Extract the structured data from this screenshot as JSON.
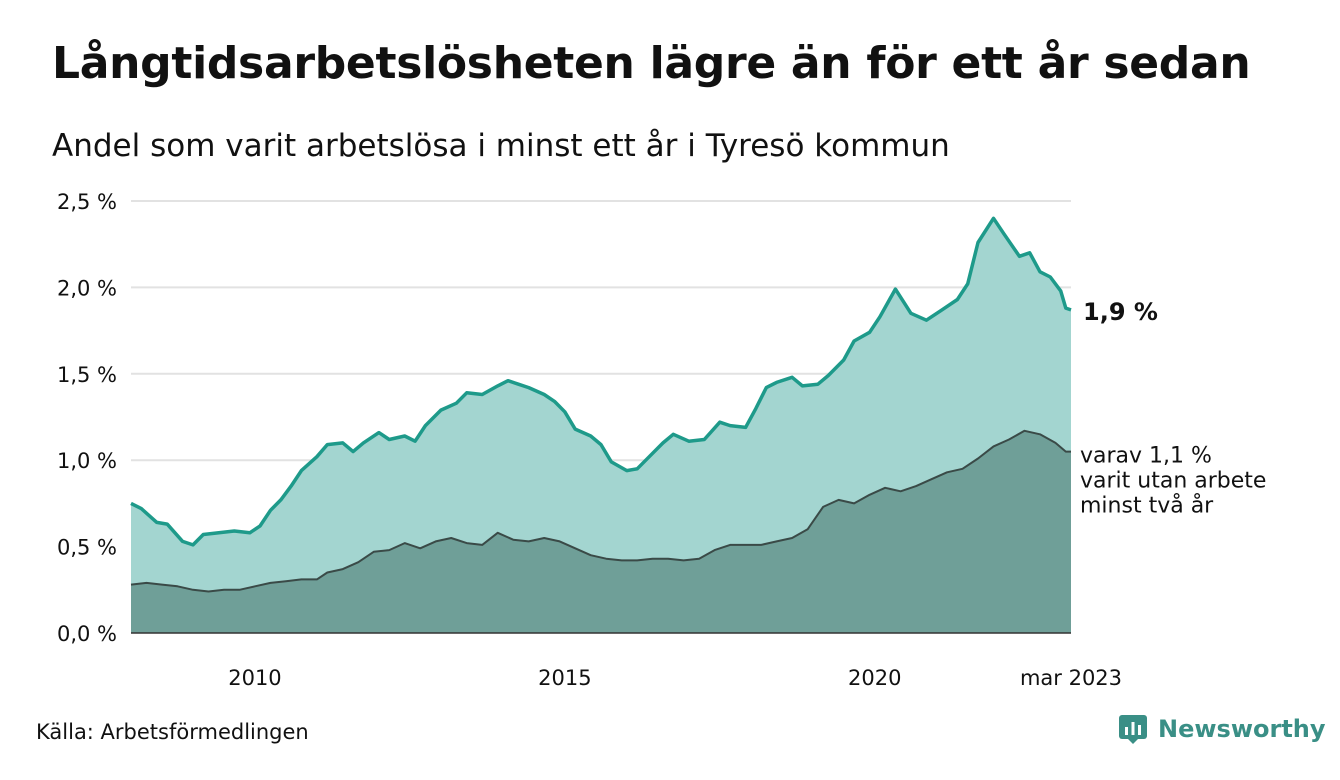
{
  "header": {
    "title": "Långtidsarbetslösheten lägre än för ett år sedan",
    "subtitle": "Andel som varit arbetslösa i minst ett år i Tyresö kommun"
  },
  "footer": {
    "source": "Källa: Arbetsförmedlingen",
    "brand": "Newsworthy"
  },
  "colors": {
    "total_line": "#1e9a8a",
    "total_fill": "#a3d5d0",
    "long_line": "#3a4a47",
    "long_fill": "#6f9f98",
    "grid": "#e2e2e2",
    "brand": "#3a8f86"
  },
  "chart_data": {
    "type": "area",
    "title": "Långtidsarbetslösheten lägre än för ett år sedan",
    "subtitle": "Andel som varit arbetslösa i minst ett år i Tyresö kommun",
    "xlabel": "",
    "ylabel": "",
    "ylim": [
      0,
      2.5
    ],
    "xlim": [
      "2008-01",
      "2023-03"
    ],
    "grid": true,
    "legend": "none",
    "y_ticks": [
      {
        "value": 0.0,
        "label": "0,0 %"
      },
      {
        "value": 0.5,
        "label": "0,5 %"
      },
      {
        "value": 1.0,
        "label": "1,0 %"
      },
      {
        "value": 1.5,
        "label": "1,5 %"
      },
      {
        "value": 2.0,
        "label": "2,0 %"
      },
      {
        "value": 2.5,
        "label": "2,5 %"
      }
    ],
    "x_ticks": [
      {
        "value": "2010-01",
        "label": "2010"
      },
      {
        "value": "2015-01",
        "label": "2015"
      },
      {
        "value": "2020-01",
        "label": "2020"
      },
      {
        "value": "2023-03",
        "label": "mar 2023"
      }
    ],
    "end_labels": {
      "total": "1,9 %",
      "long": [
        "varav 1,1 %",
        "varit utan arbete",
        "minst två år"
      ]
    },
    "series": [
      {
        "key": "total",
        "points": [
          [
            "2008-01",
            0.75
          ],
          [
            "2008-03",
            0.72
          ],
          [
            "2008-06",
            0.64
          ],
          [
            "2008-08",
            0.63
          ],
          [
            "2008-11",
            0.53
          ],
          [
            "2009-01",
            0.51
          ],
          [
            "2009-03",
            0.57
          ],
          [
            "2009-06",
            0.58
          ],
          [
            "2009-09",
            0.59
          ],
          [
            "2009-12",
            0.58
          ],
          [
            "2010-02",
            0.62
          ],
          [
            "2010-04",
            0.71
          ],
          [
            "2010-06",
            0.77
          ],
          [
            "2010-08",
            0.85
          ],
          [
            "2010-10",
            0.94
          ],
          [
            "2011-01",
            1.02
          ],
          [
            "2011-03",
            1.09
          ],
          [
            "2011-06",
            1.1
          ],
          [
            "2011-08",
            1.05
          ],
          [
            "2011-10",
            1.1
          ],
          [
            "2012-01",
            1.16
          ],
          [
            "2012-03",
            1.12
          ],
          [
            "2012-06",
            1.14
          ],
          [
            "2012-08",
            1.11
          ],
          [
            "2012-10",
            1.2
          ],
          [
            "2013-01",
            1.29
          ],
          [
            "2013-04",
            1.33
          ],
          [
            "2013-06",
            1.39
          ],
          [
            "2013-09",
            1.38
          ],
          [
            "2013-12",
            1.43
          ],
          [
            "2014-02",
            1.46
          ],
          [
            "2014-04",
            1.44
          ],
          [
            "2014-06",
            1.42
          ],
          [
            "2014-09",
            1.38
          ],
          [
            "2014-11",
            1.34
          ],
          [
            "2015-01",
            1.28
          ],
          [
            "2015-03",
            1.18
          ],
          [
            "2015-06",
            1.14
          ],
          [
            "2015-08",
            1.09
          ],
          [
            "2015-10",
            0.99
          ],
          [
            "2016-01",
            0.94
          ],
          [
            "2016-03",
            0.95
          ],
          [
            "2016-06",
            1.04
          ],
          [
            "2016-08",
            1.1
          ],
          [
            "2016-10",
            1.15
          ],
          [
            "2017-01",
            1.11
          ],
          [
            "2017-04",
            1.12
          ],
          [
            "2017-07",
            1.22
          ],
          [
            "2017-09",
            1.2
          ],
          [
            "2017-12",
            1.19
          ],
          [
            "2018-02",
            1.3
          ],
          [
            "2018-04",
            1.42
          ],
          [
            "2018-06",
            1.45
          ],
          [
            "2018-09",
            1.48
          ],
          [
            "2018-11",
            1.43
          ],
          [
            "2019-02",
            1.44
          ],
          [
            "2019-04",
            1.49
          ],
          [
            "2019-07",
            1.58
          ],
          [
            "2019-09",
            1.69
          ],
          [
            "2019-12",
            1.74
          ],
          [
            "2020-02",
            1.83
          ],
          [
            "2020-05",
            1.99
          ],
          [
            "2020-08",
            1.85
          ],
          [
            "2020-11",
            1.81
          ],
          [
            "2021-02",
            1.87
          ],
          [
            "2021-05",
            1.93
          ],
          [
            "2021-07",
            2.02
          ],
          [
            "2021-09",
            2.26
          ],
          [
            "2021-12",
            2.4
          ],
          [
            "2022-02",
            2.31
          ],
          [
            "2022-05",
            2.18
          ],
          [
            "2022-07",
            2.2
          ],
          [
            "2022-09",
            2.09
          ],
          [
            "2022-11",
            2.06
          ],
          [
            "2023-01",
            1.98
          ],
          [
            "2023-02",
            1.88
          ],
          [
            "2023-03",
            1.87
          ]
        ]
      },
      {
        "key": "long",
        "points": [
          [
            "2008-01",
            0.28
          ],
          [
            "2008-04",
            0.29
          ],
          [
            "2008-07",
            0.28
          ],
          [
            "2008-10",
            0.27
          ],
          [
            "2009-01",
            0.25
          ],
          [
            "2009-04",
            0.24
          ],
          [
            "2009-07",
            0.25
          ],
          [
            "2009-10",
            0.25
          ],
          [
            "2010-01",
            0.27
          ],
          [
            "2010-04",
            0.29
          ],
          [
            "2010-07",
            0.3
          ],
          [
            "2010-10",
            0.31
          ],
          [
            "2011-01",
            0.31
          ],
          [
            "2011-03",
            0.35
          ],
          [
            "2011-06",
            0.37
          ],
          [
            "2011-09",
            0.41
          ],
          [
            "2011-12",
            0.47
          ],
          [
            "2012-03",
            0.48
          ],
          [
            "2012-06",
            0.52
          ],
          [
            "2012-09",
            0.49
          ],
          [
            "2012-12",
            0.53
          ],
          [
            "2013-03",
            0.55
          ],
          [
            "2013-06",
            0.52
          ],
          [
            "2013-09",
            0.51
          ],
          [
            "2013-12",
            0.58
          ],
          [
            "2014-03",
            0.54
          ],
          [
            "2014-06",
            0.53
          ],
          [
            "2014-09",
            0.55
          ],
          [
            "2014-12",
            0.53
          ],
          [
            "2015-03",
            0.49
          ],
          [
            "2015-06",
            0.45
          ],
          [
            "2015-09",
            0.43
          ],
          [
            "2015-12",
            0.42
          ],
          [
            "2016-03",
            0.42
          ],
          [
            "2016-06",
            0.43
          ],
          [
            "2016-09",
            0.43
          ],
          [
            "2016-12",
            0.42
          ],
          [
            "2017-03",
            0.43
          ],
          [
            "2017-06",
            0.48
          ],
          [
            "2017-09",
            0.51
          ],
          [
            "2017-12",
            0.51
          ],
          [
            "2018-03",
            0.51
          ],
          [
            "2018-06",
            0.53
          ],
          [
            "2018-09",
            0.55
          ],
          [
            "2018-12",
            0.6
          ],
          [
            "2019-03",
            0.73
          ],
          [
            "2019-06",
            0.77
          ],
          [
            "2019-09",
            0.75
          ],
          [
            "2019-12",
            0.8
          ],
          [
            "2020-03",
            0.84
          ],
          [
            "2020-06",
            0.82
          ],
          [
            "2020-09",
            0.85
          ],
          [
            "2020-12",
            0.89
          ],
          [
            "2021-03",
            0.93
          ],
          [
            "2021-06",
            0.95
          ],
          [
            "2021-09",
            1.01
          ],
          [
            "2021-12",
            1.08
          ],
          [
            "2022-03",
            1.12
          ],
          [
            "2022-06",
            1.17
          ],
          [
            "2022-09",
            1.15
          ],
          [
            "2022-12",
            1.1
          ],
          [
            "2023-02",
            1.05
          ],
          [
            "2023-03",
            1.05
          ]
        ]
      }
    ]
  }
}
